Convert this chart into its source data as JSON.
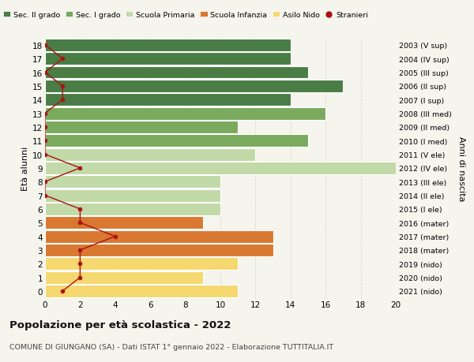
{
  "ages": [
    18,
    17,
    16,
    15,
    14,
    13,
    12,
    11,
    10,
    9,
    8,
    7,
    6,
    5,
    4,
    3,
    2,
    1,
    0
  ],
  "right_labels": [
    "2003 (V sup)",
    "2004 (IV sup)",
    "2005 (III sup)",
    "2006 (II sup)",
    "2007 (I sup)",
    "2008 (III med)",
    "2009 (II med)",
    "2010 (I med)",
    "2011 (V ele)",
    "2012 (IV ele)",
    "2013 (III ele)",
    "2014 (II ele)",
    "2015 (I ele)",
    "2016 (mater)",
    "2017 (mater)",
    "2018 (mater)",
    "2019 (nido)",
    "2020 (nido)",
    "2021 (nido)"
  ],
  "bar_values": [
    14,
    14,
    15,
    17,
    14,
    16,
    11,
    15,
    12,
    20,
    10,
    10,
    10,
    9,
    13,
    13,
    11,
    9,
    11
  ],
  "bar_colors": [
    "#4a7c45",
    "#4a7c45",
    "#4a7c45",
    "#4a7c45",
    "#4a7c45",
    "#7aaa5e",
    "#7aaa5e",
    "#7aaa5e",
    "#c2d9a8",
    "#c2d9a8",
    "#c2d9a8",
    "#c2d9a8",
    "#c2d9a8",
    "#d97830",
    "#d97830",
    "#d97830",
    "#f5d870",
    "#f5d870",
    "#f5d870"
  ],
  "stranieri_values": [
    0,
    1,
    0,
    1,
    1,
    0,
    0,
    0,
    0,
    2,
    0,
    0,
    2,
    2,
    4,
    2,
    2,
    2,
    1
  ],
  "legend_labels": [
    "Sec. II grado",
    "Sec. I grado",
    "Scuola Primaria",
    "Scuola Infanzia",
    "Asilo Nido",
    "Stranieri"
  ],
  "legend_colors": [
    "#4a7c45",
    "#7aaa5e",
    "#c2d9a8",
    "#d97830",
    "#f5d870",
    "#aa1111"
  ],
  "ylabel_left": "Età alunni",
  "ylabel_right": "Anni di nascita",
  "xlim": [
    0,
    20
  ],
  "xticks": [
    0,
    2,
    4,
    6,
    8,
    10,
    12,
    14,
    16,
    18,
    20
  ],
  "title_main": "Popolazione per età scolastica - 2022",
  "title_sub": "COMUNE DI GIUNGANO (SA) - Dati ISTAT 1° gennaio 2022 - Elaborazione TUTTITALIA.IT",
  "bg_color": "#f5f5ee",
  "grid_color": "#d8d8cc",
  "bar_height": 0.92
}
